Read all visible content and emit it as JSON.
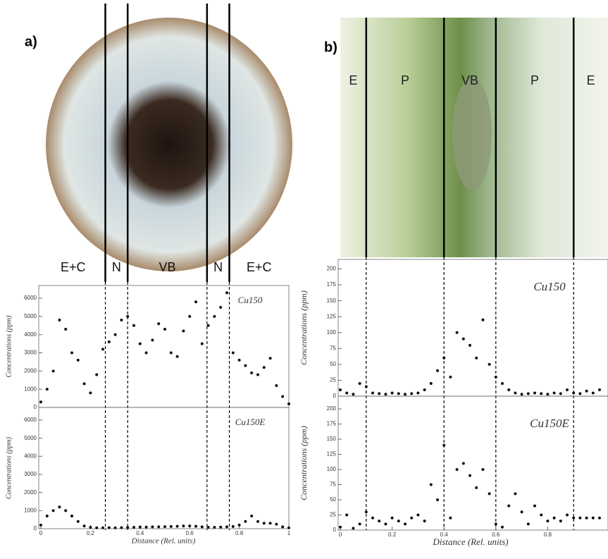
{
  "panels": [
    {
      "label": "a)",
      "regions": [
        "E+C",
        "N",
        "VB",
        "N",
        "E+C"
      ],
      "boundaries": [
        0.26,
        0.35,
        0.67,
        0.76
      ]
    },
    {
      "label": "b)",
      "regions": [
        "E",
        "P",
        "VB",
        "P",
        "E"
      ],
      "boundaries": [
        0.1,
        0.4,
        0.6,
        0.9
      ]
    }
  ],
  "chart_data": [
    {
      "type": "scatter",
      "title": "Cu150",
      "y_label": "Concentrations (ppm)",
      "color": "#111111",
      "x": [
        0,
        0.025,
        0.05,
        0.075,
        0.1,
        0.125,
        0.15,
        0.175,
        0.2,
        0.225,
        0.25,
        0.275,
        0.3,
        0.325,
        0.35,
        0.375,
        0.4,
        0.425,
        0.45,
        0.475,
        0.5,
        0.525,
        0.55,
        0.575,
        0.6,
        0.625,
        0.65,
        0.675,
        0.7,
        0.725,
        0.75,
        0.775,
        0.8,
        0.825,
        0.85,
        0.875,
        0.9,
        0.925,
        0.95,
        0.975,
        1
      ],
      "values": [
        300,
        1000,
        2000,
        4800,
        4300,
        3000,
        2600,
        1300,
        800,
        1800,
        3200,
        3600,
        4000,
        4800,
        5000,
        4500,
        3500,
        3000,
        3700,
        4600,
        4300,
        3000,
        2800,
        4200,
        5000,
        5800,
        3500,
        4500,
        5000,
        5500,
        6300,
        3000,
        2600,
        2300,
        1900,
        1800,
        2200,
        2700,
        1200,
        600,
        200
      ],
      "xlim": [
        0,
        1
      ],
      "ylim": [
        0,
        6700
      ],
      "yticks": [
        0,
        1000,
        2000,
        3000,
        4000,
        5000,
        6000
      ]
    },
    {
      "type": "scatter",
      "title": "Cu150E",
      "y_label": "Concentrations (ppm)",
      "x_label": "Distance (Rel. units)",
      "color": "#111111",
      "x": [
        0,
        0.025,
        0.05,
        0.075,
        0.1,
        0.125,
        0.15,
        0.175,
        0.2,
        0.225,
        0.25,
        0.275,
        0.3,
        0.325,
        0.35,
        0.375,
        0.4,
        0.425,
        0.45,
        0.475,
        0.5,
        0.525,
        0.55,
        0.575,
        0.6,
        0.625,
        0.65,
        0.675,
        0.7,
        0.725,
        0.75,
        0.775,
        0.8,
        0.825,
        0.85,
        0.875,
        0.9,
        0.925,
        0.95,
        0.975,
        1
      ],
      "values": [
        200,
        700,
        1000,
        1200,
        1000,
        700,
        400,
        150,
        80,
        50,
        50,
        60,
        50,
        60,
        70,
        80,
        90,
        90,
        100,
        100,
        110,
        120,
        130,
        150,
        150,
        130,
        100,
        80,
        80,
        90,
        100,
        120,
        200,
        400,
        700,
        400,
        300,
        300,
        250,
        100,
        50
      ],
      "xlim": [
        0,
        1
      ],
      "ylim": [
        0,
        6700
      ],
      "yticks": [
        0,
        1000,
        2000,
        3000,
        4000,
        5000,
        6000
      ],
      "xticks": [
        0,
        0.2,
        0.4,
        0.6,
        0.8,
        1
      ]
    },
    {
      "type": "scatter",
      "title": "Cu150",
      "y_label": "Concentrations (ppm)",
      "color": "#111111",
      "x": [
        0,
        0.025,
        0.05,
        0.075,
        0.1,
        0.125,
        0.15,
        0.175,
        0.2,
        0.225,
        0.25,
        0.275,
        0.3,
        0.325,
        0.35,
        0.375,
        0.4,
        0.425,
        0.45,
        0.475,
        0.5,
        0.525,
        0.55,
        0.575,
        0.6,
        0.625,
        0.65,
        0.675,
        0.7,
        0.725,
        0.75,
        0.775,
        0.8,
        0.825,
        0.85,
        0.875,
        0.9,
        0.925,
        0.95,
        0.975,
        1
      ],
      "values": [
        10,
        5,
        3,
        20,
        15,
        5,
        4,
        3,
        5,
        4,
        3,
        4,
        5,
        10,
        20,
        40,
        60,
        30,
        100,
        90,
        80,
        60,
        120,
        50,
        30,
        20,
        10,
        5,
        3,
        4,
        5,
        4,
        3,
        5,
        4,
        10,
        5,
        4,
        8,
        5,
        10
      ],
      "xlim": [
        0,
        1.04
      ],
      "ylim": [
        0,
        215
      ],
      "yticks": [
        0,
        25,
        50,
        75,
        100,
        125,
        150,
        175,
        200
      ]
    },
    {
      "type": "scatter",
      "title": "Cu150E",
      "y_label": "Concentrations (ppm)",
      "x_label": "Distance (Rel. units)",
      "color": "#111111",
      "x": [
        0,
        0.025,
        0.05,
        0.075,
        0.1,
        0.125,
        0.15,
        0.175,
        0.2,
        0.225,
        0.25,
        0.275,
        0.3,
        0.325,
        0.35,
        0.375,
        0.4,
        0.425,
        0.45,
        0.475,
        0.5,
        0.525,
        0.55,
        0.575,
        0.6,
        0.625,
        0.65,
        0.675,
        0.7,
        0.725,
        0.75,
        0.775,
        0.8,
        0.825,
        0.85,
        0.875,
        0.9,
        0.925,
        0.95,
        0.975,
        1
      ],
      "values": [
        5,
        25,
        3,
        10,
        30,
        20,
        15,
        10,
        20,
        15,
        10,
        20,
        25,
        15,
        75,
        50,
        140,
        20,
        100,
        110,
        90,
        70,
        100,
        60,
        10,
        5,
        40,
        60,
        30,
        10,
        40,
        25,
        15,
        20,
        15,
        25,
        20,
        20,
        20,
        20,
        20
      ],
      "xlim": [
        0,
        1.04
      ],
      "ylim": [
        0,
        221
      ],
      "yticks": [
        0,
        25,
        50,
        75,
        100,
        125,
        150,
        175,
        200
      ],
      "xticks": [
        0,
        0.2,
        0.4,
        0.6,
        0.8
      ]
    }
  ]
}
